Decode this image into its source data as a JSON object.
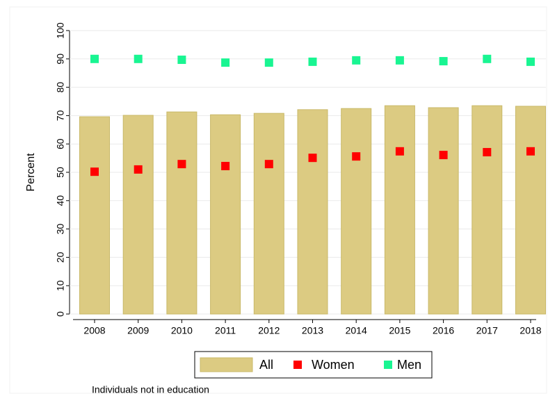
{
  "chart_data": {
    "type": "bar",
    "y_label": "Percent",
    "note": "Individuals not in education",
    "categories": [
      "2008",
      "2009",
      "2010",
      "2011",
      "2012",
      "2013",
      "2014",
      "2015",
      "2016",
      "2017",
      "2018"
    ],
    "series": [
      {
        "name": "All",
        "type": "bar",
        "color": "#dccb82",
        "values": [
          69.6,
          70.1,
          71.3,
          70.3,
          70.8,
          72.1,
          72.5,
          73.5,
          72.8,
          73.5,
          73.3
        ]
      },
      {
        "name": "Women",
        "type": "square",
        "color": "#ff0000",
        "values": [
          50.2,
          51.0,
          52.9,
          52.2,
          52.9,
          55.1,
          55.6,
          57.4,
          56.1,
          57.1,
          57.4
        ]
      },
      {
        "name": "Men",
        "type": "square",
        "color": "#19f592",
        "values": [
          90.0,
          90.0,
          89.7,
          88.7,
          88.7,
          89.0,
          89.5,
          89.5,
          89.2,
          90.0,
          89.0
        ]
      }
    ],
    "ylim": [
      0,
      100
    ],
    "yticks": [
      0,
      10,
      20,
      30,
      40,
      50,
      60,
      70,
      80,
      90,
      100
    ],
    "grid": true
  }
}
